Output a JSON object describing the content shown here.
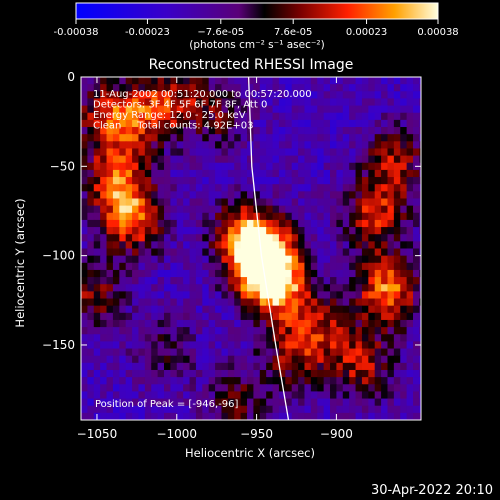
{
  "chart_data": {
    "type": "heatmap",
    "title": "Reconstructed RHESSI Image",
    "xlabel": "Heliocentric X (arcsec)",
    "ylabel": "Heliocentric Y (arcsec)",
    "xlim": [
      -1060,
      -847
    ],
    "ylim": [
      -192,
      0
    ],
    "x_ticks": [
      -1050,
      -1000,
      -950,
      -900
    ],
    "x_tick_labels": [
      "−1050",
      "−1000",
      "−950",
      "−900"
    ],
    "y_ticks": [
      0,
      -50,
      -100,
      -150
    ],
    "y_tick_labels": [
      "0",
      "−50",
      "−100",
      "−150"
    ],
    "colorbar": {
      "min": -0.00038,
      "max": 0.00038,
      "ticks": [
        -0.00038,
        -0.00023,
        -7.6e-05,
        7.6e-05,
        0.00023,
        0.00038
      ],
      "tick_labels": [
        "-0.00038",
        "-0.00023",
        "−7.6e-05",
        "7.6e-05",
        "0.00023",
        "0.00038"
      ],
      "unit_label": "(photons cm⁻² s⁻¹ asec⁻²)"
    },
    "annotations": [
      "11-Aug-2002 00:51:20.000 to 00:57:20.000",
      "Detectors: 3F 4F 5F 6F 7F 8F, Att 0",
      "Energy Range: 12.0 - 25.0 keV",
      "Clean     Total counts: 4.92E+03"
    ],
    "peak_label": "Position of Peak = [-946,-96]",
    "peak": {
      "x": -946,
      "y": -96
    },
    "limb_curve": [
      [
        -955,
        0
      ],
      [
        -953,
        -50
      ],
      [
        -947,
        -100
      ],
      [
        -938,
        -150
      ],
      [
        -930,
        -192
      ]
    ],
    "sources": [
      {
        "x": -948,
        "y": -98,
        "strength": 1.0
      },
      {
        "x": -945,
        "y": -108,
        "strength": 0.7
      },
      {
        "x": -935,
        "y": -120,
        "strength": 0.45
      },
      {
        "x": -962,
        "y": -85,
        "strength": 0.6
      },
      {
        "x": -1030,
        "y": -78,
        "strength": 0.75
      },
      {
        "x": -1040,
        "y": -55,
        "strength": 0.7
      },
      {
        "x": -1045,
        "y": -20,
        "strength": 0.65
      },
      {
        "x": -1055,
        "y": -120,
        "strength": 0.5
      },
      {
        "x": -1020,
        "y": -20,
        "strength": 0.55
      },
      {
        "x": -1000,
        "y": -8,
        "strength": 0.4
      },
      {
        "x": -870,
        "y": -118,
        "strength": 0.85
      },
      {
        "x": -878,
        "y": -75,
        "strength": 0.65
      },
      {
        "x": -865,
        "y": -45,
        "strength": 0.55
      },
      {
        "x": -885,
        "y": -160,
        "strength": 0.55
      },
      {
        "x": -910,
        "y": -140,
        "strength": 0.5
      },
      {
        "x": -930,
        "y": -155,
        "strength": 0.45
      },
      {
        "x": -965,
        "y": -180,
        "strength": 0.4
      },
      {
        "x": -1010,
        "y": -150,
        "strength": 0.3
      },
      {
        "x": -975,
        "y": -20,
        "strength": 0.35
      }
    ]
  },
  "timestamp": "30-Apr-2022 20:10"
}
